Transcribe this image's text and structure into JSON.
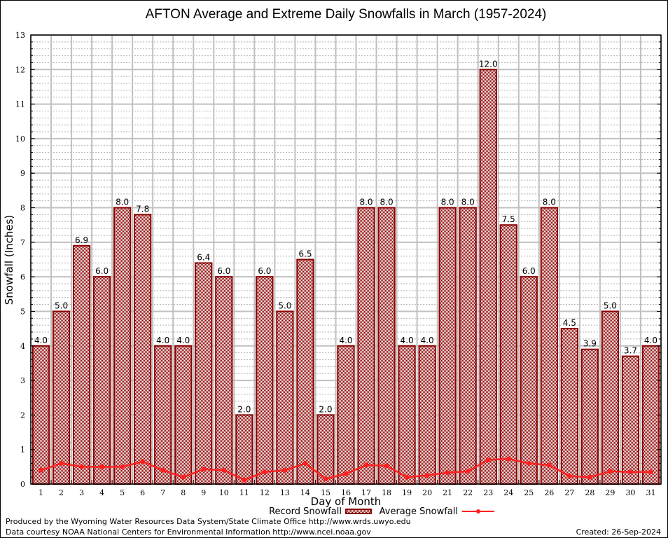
{
  "chart_data": {
    "type": "bar",
    "title": "AFTON Average and Extreme Daily Snowfalls in March (1957-2024)",
    "xlabel": "Day of Month",
    "ylabel": "Snowfall (Inches)",
    "ylim": [
      0,
      13
    ],
    "yticks": [
      0,
      1,
      2,
      3,
      4,
      5,
      6,
      7,
      8,
      9,
      10,
      11,
      12,
      13
    ],
    "grid": true,
    "categories": [
      "1",
      "2",
      "3",
      "4",
      "5",
      "6",
      "7",
      "8",
      "9",
      "10",
      "11",
      "12",
      "13",
      "14",
      "15",
      "16",
      "17",
      "18",
      "19",
      "20",
      "21",
      "22",
      "23",
      "24",
      "25",
      "26",
      "27",
      "28",
      "29",
      "30",
      "31"
    ],
    "series": [
      {
        "name": "Record Snowfall",
        "type": "bar",
        "color": "#8b0000",
        "values": [
          4.0,
          5.0,
          6.9,
          6.0,
          8.0,
          7.8,
          4.0,
          4.0,
          6.4,
          6.0,
          2.0,
          6.0,
          5.0,
          6.5,
          2.0,
          4.0,
          8.0,
          8.0,
          4.0,
          4.0,
          8.0,
          8.0,
          12.0,
          7.5,
          6.0,
          8.0,
          4.5,
          3.9,
          5.0,
          3.7,
          4.0
        ],
        "labels": [
          "4.0",
          "5.0",
          "6.9",
          "6.0",
          "8.0",
          "7.8",
          "4.0",
          "4.0",
          "6.4",
          "6.0",
          "2.0",
          "6.0",
          "5.0",
          "6.5",
          "2.0",
          "4.0",
          "8.0",
          "8.0",
          "4.0",
          "4.0",
          "8.0",
          "8.0",
          "12.0",
          "7.5",
          "6.0",
          "8.0",
          "4.5",
          "3.9",
          "5.0",
          "3.7",
          "4.0"
        ]
      },
      {
        "name": "Average Snowfall",
        "type": "line",
        "color": "#ff2020",
        "values": [
          0.4,
          0.6,
          0.5,
          0.5,
          0.5,
          0.65,
          0.4,
          0.2,
          0.43,
          0.4,
          0.12,
          0.35,
          0.4,
          0.6,
          0.15,
          0.3,
          0.55,
          0.53,
          0.2,
          0.25,
          0.33,
          0.37,
          0.7,
          0.73,
          0.6,
          0.55,
          0.23,
          0.2,
          0.37,
          0.35,
          0.35
        ]
      }
    ],
    "legend": {
      "placement": "bottom-center"
    }
  },
  "footer": {
    "line1": "Produced by the Wyoming Water Resources Data System/State Climate Office http://www.wrds.uwyo.edu",
    "line2": "Data courtesy NOAA National Centers for Environmental Information http://www.ncei.noaa.gov",
    "created": "Created: 26-Sep-2024"
  }
}
